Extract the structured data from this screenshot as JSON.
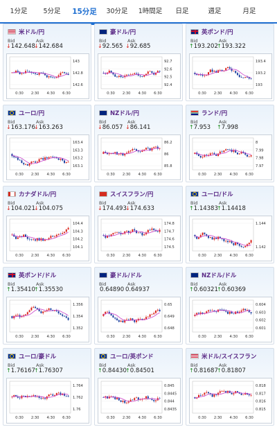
{
  "tabs": [
    {
      "label": "1分足",
      "active": false
    },
    {
      "label": "5分足",
      "active": false
    },
    {
      "label": "15分足",
      "active": true
    },
    {
      "label": "30分足",
      "active": false
    },
    {
      "label": "1時間足",
      "active": false
    },
    {
      "label": "日足",
      "active": false
    },
    {
      "label": "週足",
      "active": false
    },
    {
      "label": "月足",
      "active": false
    }
  ],
  "labels": {
    "bid": "Bid",
    "ask": "Ask"
  },
  "colors": {
    "accent": "#1f6fd1",
    "up": "#1b8a1b",
    "down": "#d9231a",
    "bull_candle": "#d9231a",
    "bear_candle": "#1a3fa0",
    "ma": "#c940c9"
  },
  "cards": [
    {
      "title": "米ドル/円",
      "flags": [
        "us",
        "jp"
      ],
      "dir": "down",
      "bid": "142.648",
      "ask": "142.684",
      "yticks": [
        "143",
        "142.8",
        "142.6"
      ],
      "xticks": [
        "0:30",
        "2:30",
        "4:30",
        "6:30"
      ]
    },
    {
      "title": "豪ドル/円",
      "flags": [
        "au",
        "jp"
      ],
      "dir": "down",
      "bid": "92.565",
      "ask": "92.685",
      "yticks": [
        "92.7",
        "92.6",
        "92.5",
        "92.4"
      ],
      "xticks": [
        "0:30",
        "2:30",
        "4:30",
        "6:30"
      ]
    },
    {
      "title": "英ポンド/円",
      "flags": [
        "gb",
        "jp"
      ],
      "dir": "up",
      "bid": "193.202",
      "ask": "193.322",
      "yticks": [
        "193.4",
        "193.2",
        "193"
      ],
      "xticks": [
        "0:30",
        "2:30",
        "4:30",
        "6:30"
      ]
    },
    {
      "title": "ユーロ/円",
      "flags": [
        "eu",
        "jp"
      ],
      "dir": "down",
      "bid": "163.176",
      "ask": "163.263",
      "yticks": [
        "163.4",
        "163.3",
        "163.2",
        "163.1"
      ],
      "xticks": [
        "0:30",
        "2:30",
        "4:30",
        "6:30"
      ]
    },
    {
      "title": "NZドル/円",
      "flags": [
        "nz",
        "jp"
      ],
      "dir": "down",
      "bid": "86.057",
      "ask": "86.141",
      "yticks": [
        "86.2",
        "86",
        "85.8"
      ],
      "xticks": [
        "0:30",
        "2:30",
        "4:30",
        "6:30"
      ]
    },
    {
      "title": "ランド/円",
      "flags": [
        "za",
        "jp"
      ],
      "dir": "up",
      "bid": "7.953",
      "ask": "7.998",
      "yticks": [
        "8",
        "7.99",
        "7.98",
        "7.97"
      ],
      "xticks": [
        "0:30",
        "2:30",
        "4:30",
        "6:30"
      ]
    },
    {
      "title": "カナダドル/円",
      "flags": [
        "ca",
        "jp"
      ],
      "dir": "down",
      "bid": "104.021",
      "ask": "104.075",
      "yticks": [
        "104.4",
        "104.3",
        "104.2",
        "104.1"
      ],
      "xticks": [
        "0:30",
        "2:30",
        "4:30",
        "6:30"
      ]
    },
    {
      "title": "スイスフラン/円",
      "flags": [
        "ch",
        "jp"
      ],
      "dir": "down",
      "bid": "174.493",
      "ask": "174.633",
      "yticks": [
        "174.8",
        "174.7",
        "174.6",
        "174.5"
      ],
      "xticks": [
        "0:30",
        "2:30",
        "4:30",
        "6:30"
      ]
    },
    {
      "title": "ユーロ/ドル",
      "flags": [
        "eu",
        "us"
      ],
      "dir": "up",
      "bid": "1.14383",
      "ask": "1.14418",
      "yticks": [
        "1.144",
        "1.142"
      ],
      "xticks": [
        "0:30",
        "2:30",
        "4:30",
        "6:30"
      ]
    },
    {
      "title": "英ポンド/ドル",
      "flags": [
        "gb",
        "us"
      ],
      "dir": "up",
      "bid": "1.35410",
      "ask": "1.35530",
      "yticks": [
        "1.356",
        "1.354",
        "1.352"
      ],
      "xticks": [
        "0:30",
        "2:30",
        "4:30",
        "6:30"
      ]
    },
    {
      "title": "豪ドル/ドル",
      "flags": [
        "au",
        "us"
      ],
      "dir": "none",
      "bid": "0.64890",
      "ask": "0.64937",
      "yticks": [
        "0.65",
        "0.649",
        "0.648"
      ],
      "xticks": [
        "0:30",
        "2:30",
        "4:30",
        "6:30"
      ]
    },
    {
      "title": "NZドル/ドル",
      "flags": [
        "nz",
        "us"
      ],
      "dir": "up",
      "bid": "0.60321",
      "ask": "0.60369",
      "yticks": [
        "0.604",
        "0.603",
        "0.602",
        "0.601"
      ],
      "xticks": [
        "0:30",
        "2:30",
        "4:30",
        "6:30"
      ]
    },
    {
      "title": "ユーロ/豪ドル",
      "flags": [
        "eu",
        "au"
      ],
      "dir": "up",
      "bid": "1.76167",
      "ask": "1.76307",
      "yticks": [
        "1.764",
        "1.762",
        "1.76"
      ],
      "xticks": [
        "0:30",
        "2:30",
        "4:30",
        "6:30"
      ]
    },
    {
      "title": "ユーロ/英ポンド",
      "flags": [
        "eu",
        "gb"
      ],
      "dir": "up",
      "bid": "0.84430",
      "ask": "0.84501",
      "yticks": [
        "0.845",
        "0.8445",
        "0.844",
        "0.8435"
      ],
      "xticks": [
        "0:30",
        "2:30",
        "4:30",
        "6:30"
      ]
    },
    {
      "title": "米ドル/スイスフラン",
      "flags": [
        "us",
        "ch"
      ],
      "dir": "up",
      "bid": "0.81687",
      "ask": "0.81807",
      "yticks": [
        "0.818",
        "0.817",
        "0.816",
        "0.815"
      ],
      "xticks": [
        "0:30",
        "2:30",
        "4:30",
        "6:30"
      ]
    }
  ]
}
